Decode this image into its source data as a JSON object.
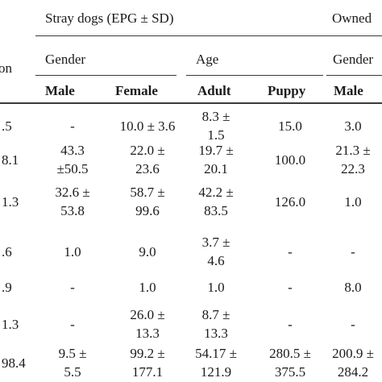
{
  "header": {
    "group_stray": "Stray dogs (EPG ± SD)",
    "group_owned": "Owned",
    "col0_fragment": "on",
    "stray_gender": "Gender",
    "stray_age": "Age",
    "owned_gender": "Gender",
    "col_male": "Male",
    "col_female": "Female",
    "col_adult": "Adult",
    "col_puppy": "Puppy",
    "col_owned_male": "Male"
  },
  "rows": [
    {
      "col0": ".5",
      "male": [
        "-"
      ],
      "female": [
        "10.0 ± 3.6"
      ],
      "adult": [
        "8.3  ±",
        "1.5"
      ],
      "puppy": [
        "15.0"
      ],
      "owned_male": [
        "3.0"
      ]
    },
    {
      "col0": "8.1",
      "male": [
        "43.3",
        "±50.5"
      ],
      "female": [
        "22.0 ±",
        "23.6"
      ],
      "adult": [
        "19.7 ±",
        "20.1"
      ],
      "puppy": [
        "100.0"
      ],
      "owned_male": [
        "21.3 ±",
        "22.3"
      ]
    },
    {
      "col0": "1.3",
      "male": [
        "32.6 ±",
        "53.8"
      ],
      "female": [
        "58.7 ±",
        "99.6"
      ],
      "adult": [
        "42.2 ±",
        "83.5"
      ],
      "puppy": [
        "126.0"
      ],
      "owned_male": [
        "1.0"
      ]
    },
    {
      "col0": ".6",
      "male": [
        "1.0"
      ],
      "female": [
        "9.0"
      ],
      "adult": [
        "3.7  ±",
        "4.6"
      ],
      "puppy": [
        "-"
      ],
      "owned_male": [
        "-"
      ]
    },
    {
      "col0": ".9",
      "male": [
        "-"
      ],
      "female": [
        "1.0"
      ],
      "adult": [
        "1.0"
      ],
      "puppy": [
        "-"
      ],
      "owned_male": [
        "8.0"
      ]
    },
    {
      "col0": "1.3",
      "male": [
        "-"
      ],
      "female": [
        "26.0 ±",
        "13.3"
      ],
      "adult": [
        "8.7  ±",
        "13.3"
      ],
      "puppy": [
        "-"
      ],
      "owned_male": [
        "-"
      ]
    },
    {
      "col0": "98.4",
      "male": [
        "9.5  ±",
        "5.5"
      ],
      "female": [
        "99.2 ±",
        "177.1"
      ],
      "adult": [
        "54.17 ±",
        "121.9"
      ],
      "puppy": [
        "280.5 ±",
        "375.5"
      ],
      "owned_male": [
        "200.9 ±",
        "284.2"
      ]
    }
  ]
}
